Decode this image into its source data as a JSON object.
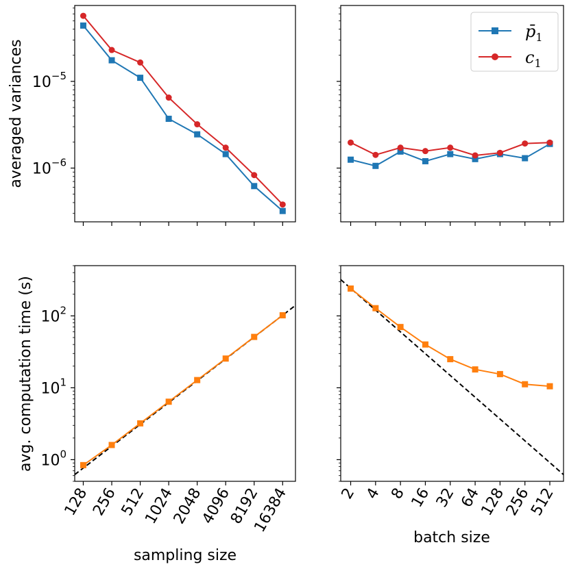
{
  "colors": {
    "blue": "#1f77b4",
    "red": "#d62728",
    "orange": "#ff7f0e",
    "reference": "#000000"
  },
  "chart_data": [
    {
      "id": "top-left",
      "type": "line",
      "yscale": "log",
      "title": "",
      "xlabel": "",
      "ylabel": "averaged variances",
      "x": [
        0,
        1,
        2,
        3,
        4,
        5,
        6,
        7
      ],
      "xlim": [
        -0.3,
        7.45
      ],
      "ylim": [
        2.4e-07,
        7.5e-05
      ],
      "yticks": [
        {
          "value": 1e-05,
          "base": "10",
          "exp": "−5"
        },
        {
          "value": 1e-06,
          "base": "10",
          "exp": "−6"
        }
      ],
      "series": [
        {
          "name": "p̄1",
          "color": "#1f77b4",
          "marker": "square",
          "values": [
            4.4e-05,
            1.75e-05,
            1.1e-05,
            3.7e-06,
            2.45e-06,
            1.45e-06,
            6.2e-07,
            3.2e-07
          ]
        },
        {
          "name": "c1",
          "color": "#d62728",
          "marker": "circle",
          "values": [
            5.7e-05,
            2.3e-05,
            1.65e-05,
            6.5e-06,
            3.2e-06,
            1.72e-06,
            8.3e-07,
            3.8e-07
          ]
        }
      ]
    },
    {
      "id": "top-right",
      "type": "line",
      "yscale": "log",
      "title": "",
      "xlabel": "",
      "ylabel": "",
      "x": [
        0,
        1,
        2,
        3,
        4,
        5,
        6,
        7,
        8
      ],
      "xlim": [
        -0.4,
        8.55
      ],
      "ylim": [
        2.4e-07,
        7.5e-05
      ],
      "legend": {
        "placement": "top-right",
        "entries": [
          {
            "base": "p̄",
            "sub": "1",
            "color": "#1f77b4",
            "marker": "square"
          },
          {
            "base": "c",
            "sub": "1",
            "color": "#d62728",
            "marker": "circle"
          }
        ]
      },
      "series": [
        {
          "name": "p̄1",
          "color": "#1f77b4",
          "marker": "square",
          "values": [
            1.25e-06,
            1.06e-06,
            1.55e-06,
            1.2e-06,
            1.45e-06,
            1.27e-06,
            1.45e-06,
            1.3e-06,
            1.9e-06
          ]
        },
        {
          "name": "c1",
          "color": "#d62728",
          "marker": "circle",
          "values": [
            1.97e-06,
            1.42e-06,
            1.72e-06,
            1.57e-06,
            1.72e-06,
            1.4e-06,
            1.5e-06,
            1.92e-06,
            1.97e-06
          ]
        }
      ]
    },
    {
      "id": "bottom-left",
      "type": "line",
      "yscale": "log",
      "title": "",
      "xlabel": "sampling size",
      "ylabel": "avg. computation time (s)",
      "categories": [
        "128",
        "256",
        "512",
        "1024",
        "2048",
        "4096",
        "8192",
        "16384"
      ],
      "x": [
        0,
        1,
        2,
        3,
        4,
        5,
        6,
        7
      ],
      "xlim": [
        -0.3,
        7.45
      ],
      "ylim": [
        0.5,
        500
      ],
      "yticks": [
        {
          "value": 1,
          "base": "10",
          "exp": "0"
        },
        {
          "value": 10,
          "base": "10",
          "exp": "1"
        },
        {
          "value": 100,
          "base": "10",
          "exp": "2"
        }
      ],
      "reference": {
        "style": "dashed",
        "color": "#000000",
        "from": [
          -0.3,
          0.62
        ],
        "to": [
          7.45,
          140
        ]
      },
      "series": [
        {
          "name": "time",
          "color": "#ff7f0e",
          "marker": "square",
          "values": [
            0.84,
            1.6,
            3.2,
            6.4,
            12.8,
            25.5,
            51,
            102
          ]
        }
      ]
    },
    {
      "id": "bottom-right",
      "type": "line",
      "yscale": "log",
      "title": "",
      "xlabel": "batch size",
      "ylabel": "",
      "categories": [
        "2",
        "4",
        "8",
        "16",
        "32",
        "64",
        "128",
        "256",
        "512"
      ],
      "x": [
        0,
        1,
        2,
        3,
        4,
        5,
        6,
        7,
        8
      ],
      "xlim": [
        -0.4,
        8.55
      ],
      "ylim": [
        0.5,
        500
      ],
      "reference": {
        "style": "dashed",
        "color": "#000000",
        "from": [
          -0.4,
          320
        ],
        "to": [
          8.55,
          0.62
        ]
      },
      "series": [
        {
          "name": "time",
          "color": "#ff7f0e",
          "marker": "square",
          "values": [
            240,
            128,
            70,
            40,
            25,
            18,
            15.5,
            11.2,
            10.5
          ]
        }
      ]
    }
  ]
}
